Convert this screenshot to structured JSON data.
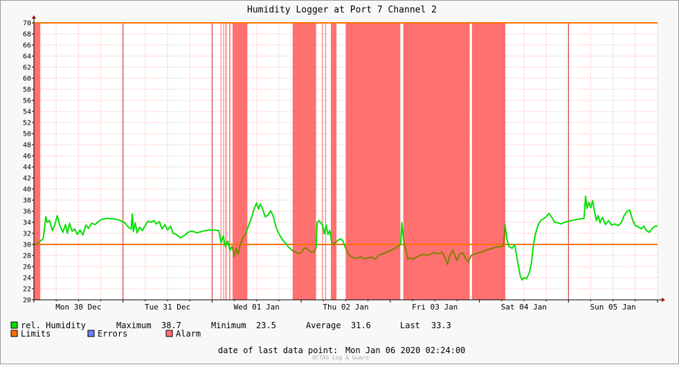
{
  "chart_data": {
    "type": "line",
    "title": "Humidity Logger at Port 7 Channel 2",
    "ylim": [
      20,
      70
    ],
    "yticks": [
      20,
      22,
      24,
      26,
      28,
      30,
      32,
      34,
      36,
      38,
      40,
      42,
      44,
      46,
      48,
      50,
      52,
      54,
      56,
      58,
      60,
      62,
      64,
      66,
      68,
      70
    ],
    "x_range_hours": [
      0,
      168
    ],
    "x_tick_labels": [
      {
        "label": "Mon 30 Dec",
        "hour": 12
      },
      {
        "label": "Tue 31 Dec",
        "hour": 36
      },
      {
        "label": "Wed 01 Jan",
        "hour": 60
      },
      {
        "label": "Thu 02 Jan",
        "hour": 84
      },
      {
        "label": "Fri 03 Jan",
        "hour": 108
      },
      {
        "label": "Sat 04 Jan",
        "hour": 132
      },
      {
        "label": "Sun 05 Jan",
        "hour": 156
      }
    ],
    "limits": [
      30,
      70
    ],
    "alarm_periods_hours": [
      [
        0,
        1.7
      ],
      [
        50.3,
        50.5
      ],
      [
        51.0,
        51.2
      ],
      [
        51.6,
        51.9
      ],
      [
        52.6,
        52.9
      ],
      [
        53.5,
        57.5
      ],
      [
        69.7,
        76.0
      ],
      [
        77.6,
        77.8
      ],
      [
        78.5,
        78.7
      ],
      [
        80.0,
        81.5
      ],
      [
        84.0,
        98.7
      ],
      [
        99.5,
        117.4
      ],
      [
        118.0,
        127.0
      ]
    ],
    "series": [
      {
        "name": "rel. Humidity",
        "color": "#00e000",
        "points": [
          [
            0,
            30.0
          ],
          [
            0.8,
            30.0
          ],
          [
            1.5,
            30.5
          ],
          [
            2.5,
            31.0
          ],
          [
            3.2,
            35.0
          ],
          [
            3.6,
            34.0
          ],
          [
            4.2,
            34.3
          ],
          [
            5.0,
            32.5
          ],
          [
            5.6,
            33.5
          ],
          [
            6.3,
            35.2
          ],
          [
            7.0,
            33.4
          ],
          [
            7.8,
            32.2
          ],
          [
            8.5,
            33.6
          ],
          [
            9.0,
            32.0
          ],
          [
            9.6,
            33.8
          ],
          [
            10.3,
            32.4
          ],
          [
            11.0,
            32.8
          ],
          [
            11.7,
            31.8
          ],
          [
            12.4,
            32.6
          ],
          [
            13.2,
            31.7
          ],
          [
            14.0,
            33.5
          ],
          [
            14.7,
            32.9
          ],
          [
            15.5,
            33.8
          ],
          [
            16.5,
            33.6
          ],
          [
            17.5,
            34.2
          ],
          [
            18.5,
            34.6
          ],
          [
            20.0,
            34.7
          ],
          [
            21.5,
            34.6
          ],
          [
            23.0,
            34.4
          ],
          [
            24.5,
            33.9
          ],
          [
            25.6,
            33.0
          ],
          [
            26.2,
            32.8
          ],
          [
            26.5,
            35.5
          ],
          [
            26.8,
            32.3
          ],
          [
            27.3,
            33.9
          ],
          [
            27.8,
            32.1
          ],
          [
            28.5,
            33.1
          ],
          [
            29.2,
            32.5
          ],
          [
            30.0,
            33.4
          ],
          [
            30.7,
            34.2
          ],
          [
            31.5,
            34.0
          ],
          [
            32.3,
            34.3
          ],
          [
            33.0,
            33.7
          ],
          [
            33.8,
            34.1
          ],
          [
            34.5,
            32.8
          ],
          [
            35.3,
            33.6
          ],
          [
            36.0,
            32.6
          ],
          [
            36.8,
            33.3
          ],
          [
            37.5,
            32.0
          ],
          [
            38.3,
            31.8
          ],
          [
            39.5,
            31.2
          ],
          [
            40.5,
            31.6
          ],
          [
            41.5,
            32.2
          ],
          [
            42.5,
            32.4
          ],
          [
            44.0,
            32.1
          ],
          [
            45.5,
            32.4
          ],
          [
            47.0,
            32.6
          ],
          [
            48.5,
            32.6
          ],
          [
            49.8,
            32.5
          ],
          [
            50.4,
            30.3
          ],
          [
            51.0,
            31.5
          ],
          [
            51.6,
            29.6
          ],
          [
            52.2,
            30.6
          ],
          [
            52.8,
            28.9
          ],
          [
            53.4,
            29.7
          ],
          [
            54.0,
            27.8
          ],
          [
            54.5,
            29.3
          ],
          [
            55.0,
            28.2
          ],
          [
            55.5,
            29.8
          ],
          [
            56.3,
            31.2
          ],
          [
            57.1,
            32.0
          ],
          [
            58.0,
            33.7
          ],
          [
            58.8,
            35.2
          ],
          [
            59.4,
            36.6
          ],
          [
            60.0,
            37.5
          ],
          [
            60.5,
            36.4
          ],
          [
            61.0,
            37.3
          ],
          [
            61.6,
            36.4
          ],
          [
            62.3,
            35.0
          ],
          [
            63.1,
            35.3
          ],
          [
            63.8,
            36.1
          ],
          [
            64.5,
            35.0
          ],
          [
            65.3,
            33.0
          ],
          [
            66.1,
            31.8
          ],
          [
            66.9,
            30.9
          ],
          [
            67.7,
            30.3
          ],
          [
            68.5,
            29.6
          ],
          [
            69.4,
            29.0
          ],
          [
            70.3,
            28.7
          ],
          [
            71.2,
            28.3
          ],
          [
            72.0,
            28.5
          ],
          [
            72.6,
            29.2
          ],
          [
            73.2,
            29.4
          ],
          [
            74.0,
            28.9
          ],
          [
            74.8,
            28.6
          ],
          [
            75.5,
            28.7
          ],
          [
            76.0,
            29.4
          ],
          [
            76.3,
            34.0
          ],
          [
            76.8,
            34.3
          ],
          [
            77.3,
            33.9
          ],
          [
            77.8,
            33.4
          ],
          [
            78.2,
            31.9
          ],
          [
            78.7,
            33.5
          ],
          [
            79.2,
            31.8
          ],
          [
            79.7,
            32.5
          ],
          [
            80.2,
            30.5
          ],
          [
            80.7,
            29.9
          ],
          [
            81.2,
            30.3
          ],
          [
            81.8,
            30.7
          ],
          [
            82.5,
            31.0
          ],
          [
            83.2,
            30.7
          ],
          [
            83.8,
            29.6
          ],
          [
            84.5,
            28.6
          ],
          [
            85.2,
            27.9
          ],
          [
            86.0,
            27.6
          ],
          [
            87.0,
            27.5
          ],
          [
            88.0,
            27.8
          ],
          [
            89.0,
            27.4
          ],
          [
            90.0,
            27.6
          ],
          [
            91.0,
            27.7
          ],
          [
            92.0,
            27.3
          ],
          [
            93.0,
            28.1
          ],
          [
            94.0,
            28.3
          ],
          [
            95.0,
            28.6
          ],
          [
            96.0,
            28.9
          ],
          [
            97.0,
            29.2
          ],
          [
            98.0,
            29.6
          ],
          [
            98.8,
            30.0
          ],
          [
            99.1,
            33.9
          ],
          [
            99.6,
            30.6
          ],
          [
            100.2,
            29.0
          ],
          [
            100.7,
            27.3
          ],
          [
            101.3,
            27.6
          ],
          [
            102.0,
            27.3
          ],
          [
            103.0,
            27.7
          ],
          [
            104.0,
            28.0
          ],
          [
            105.0,
            28.2
          ],
          [
            106.0,
            28.0
          ],
          [
            107.0,
            28.3
          ],
          [
            108.0,
            28.5
          ],
          [
            109.0,
            28.3
          ],
          [
            110.0,
            28.6
          ],
          [
            110.8,
            27.5
          ],
          [
            111.4,
            26.4
          ],
          [
            112.0,
            27.9
          ],
          [
            112.8,
            29.0
          ],
          [
            113.4,
            28.0
          ],
          [
            114.0,
            27.1
          ],
          [
            114.6,
            28.2
          ],
          [
            115.5,
            28.5
          ],
          [
            116.3,
            27.5
          ],
          [
            117.0,
            26.8
          ],
          [
            117.8,
            28.0
          ],
          [
            118.5,
            28.2
          ],
          [
            119.5,
            28.4
          ],
          [
            120.5,
            28.6
          ],
          [
            121.5,
            28.9
          ],
          [
            122.5,
            29.1
          ],
          [
            123.5,
            29.3
          ],
          [
            124.5,
            29.5
          ],
          [
            125.5,
            29.6
          ],
          [
            126.5,
            29.7
          ],
          [
            126.9,
            33.6
          ],
          [
            127.4,
            31.0
          ],
          [
            128.0,
            29.6
          ],
          [
            128.8,
            29.3
          ],
          [
            129.5,
            30.0
          ],
          [
            130.0,
            28.1
          ],
          [
            130.5,
            26.2
          ],
          [
            131.0,
            24.4
          ],
          [
            131.5,
            23.6
          ],
          [
            132.0,
            24.0
          ],
          [
            132.7,
            23.8
          ],
          [
            133.5,
            25.0
          ],
          [
            134.0,
            26.6
          ],
          [
            134.5,
            29.5
          ],
          [
            135.0,
            31.6
          ],
          [
            135.8,
            33.5
          ],
          [
            136.5,
            34.3
          ],
          [
            137.2,
            34.6
          ],
          [
            138.0,
            35.0
          ],
          [
            138.7,
            35.6
          ],
          [
            139.5,
            34.9
          ],
          [
            140.3,
            34.0
          ],
          [
            141.2,
            33.9
          ],
          [
            142.0,
            33.7
          ],
          [
            143.0,
            34.0
          ],
          [
            144.0,
            34.2
          ],
          [
            145.5,
            34.4
          ],
          [
            147.0,
            34.6
          ],
          [
            148.2,
            34.7
          ],
          [
            148.6,
            38.7
          ],
          [
            149.0,
            36.5
          ],
          [
            149.5,
            37.6
          ],
          [
            150.0,
            36.6
          ],
          [
            150.5,
            37.9
          ],
          [
            151.0,
            36.1
          ],
          [
            151.5,
            34.3
          ],
          [
            152.0,
            35.2
          ],
          [
            152.5,
            33.9
          ],
          [
            153.2,
            34.9
          ],
          [
            154.0,
            33.6
          ],
          [
            154.8,
            34.3
          ],
          [
            155.6,
            33.5
          ],
          [
            156.5,
            33.7
          ],
          [
            157.4,
            33.4
          ],
          [
            158.2,
            33.9
          ],
          [
            159.0,
            35.2
          ],
          [
            159.8,
            36.0
          ],
          [
            160.5,
            36.2
          ],
          [
            161.2,
            34.6
          ],
          [
            162.0,
            33.4
          ],
          [
            162.8,
            33.2
          ],
          [
            163.6,
            32.8
          ],
          [
            164.3,
            33.3
          ],
          [
            165.0,
            32.5
          ],
          [
            165.8,
            32.2
          ],
          [
            166.6,
            32.9
          ],
          [
            167.3,
            33.3
          ],
          [
            168.0,
            33.3
          ]
        ]
      }
    ]
  },
  "legend": {
    "humidity_label": "rel. Humidity",
    "maximum_label": "Maximum",
    "maximum_value": "38.7",
    "minimum_label": "Minimum",
    "minimum_value": "23.5",
    "average_label": "Average",
    "average_value": "31.6",
    "last_label": "Last",
    "last_value": "33.3",
    "limits_label": "Limits",
    "errors_label": "Errors",
    "alarm_label": "Alarm"
  },
  "colors": {
    "humidity": "#00e000",
    "humidity_in_alarm": "#808000",
    "limits": "#ff7000",
    "errors": "#6f7fff",
    "alarm": "#ff7070"
  },
  "footer": {
    "date_label": "date of last data point:",
    "date_value": "Mon Jan 06 2020 02:24:00",
    "credit": "OCTAS Log & Guard"
  }
}
